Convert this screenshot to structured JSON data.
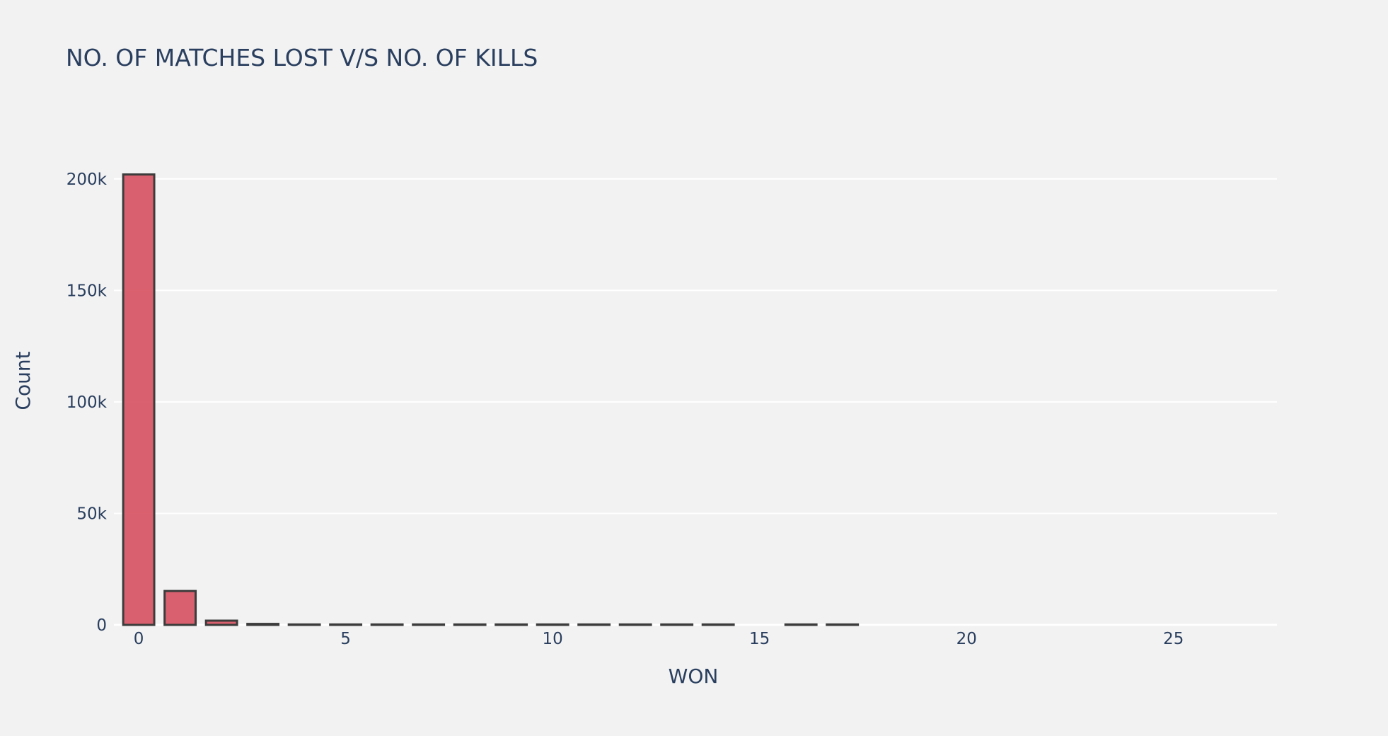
{
  "chart_data": {
    "type": "bar",
    "title": "NO. OF MATCHES LOST V/S NO. OF KILLS",
    "xlabel": "WON",
    "ylabel": "Count",
    "x": [
      0,
      1,
      2,
      3,
      4,
      5,
      6,
      7,
      8,
      9,
      10,
      11,
      12,
      13,
      14,
      15,
      16,
      17
    ],
    "values": [
      202000,
      15200,
      1900,
      450,
      150,
      60,
      30,
      20,
      10,
      8,
      5,
      4,
      3,
      2,
      2,
      0,
      1,
      1
    ],
    "xlim": [
      -0.6,
      27.5
    ],
    "ylim": [
      0,
      212000
    ],
    "x_ticks": [
      0,
      5,
      10,
      15,
      20,
      25
    ],
    "x_tick_labels": [
      "0",
      "5",
      "10",
      "15",
      "20",
      "25"
    ],
    "y_ticks": [
      0,
      50000,
      100000,
      150000,
      200000
    ],
    "y_tick_labels": [
      "0",
      "50k",
      "100k",
      "150k",
      "200k"
    ],
    "grid": "y",
    "legend": "none",
    "colors": {
      "background": "#f2f2f2",
      "bar_fill": "#d6505f",
      "bar_outline": "#3c3c3c",
      "grid": "#ffffff",
      "text": "#2a3f5f"
    }
  }
}
